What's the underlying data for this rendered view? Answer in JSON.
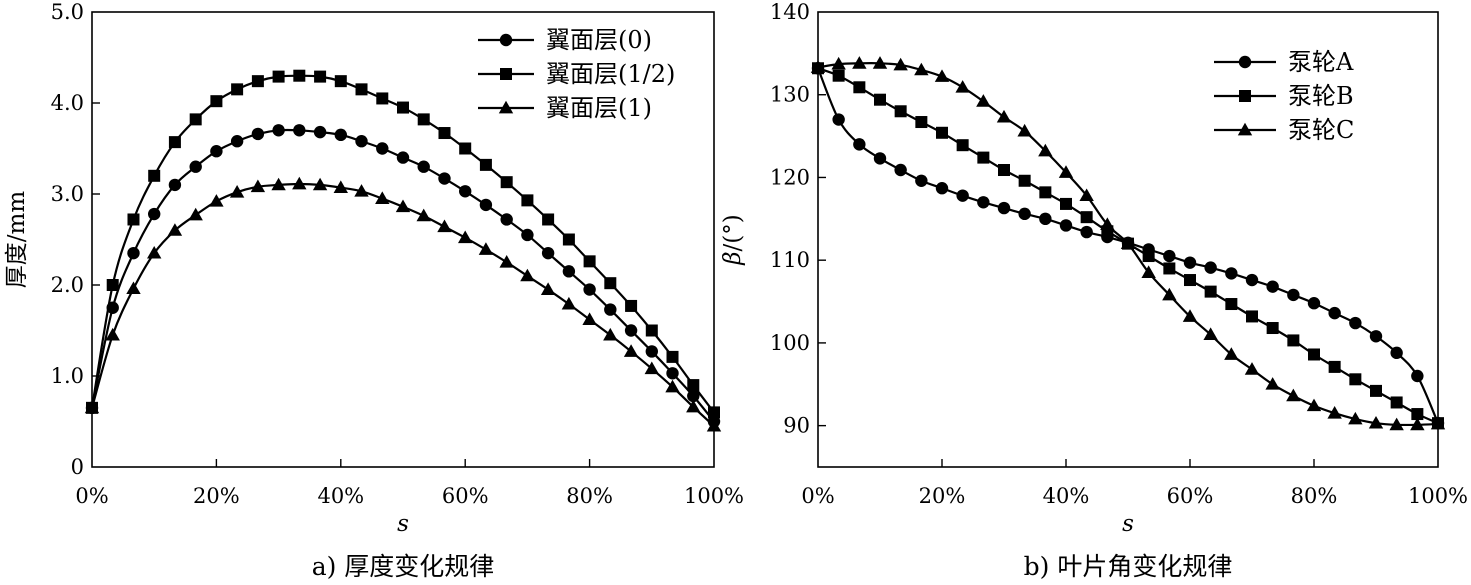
{
  "chart_data": [
    {
      "type": "line",
      "caption": "a) 厚度变化规律",
      "xlabel": "s",
      "ylabel": "厚度/mm",
      "xlim": [
        0,
        100
      ],
      "ylim": [
        0,
        5.0
      ],
      "xticks": [
        0,
        20,
        40,
        60,
        80,
        100
      ],
      "xtick_labels": [
        "0%",
        "20%",
        "40%",
        "60%",
        "80%",
        "100%"
      ],
      "yticks": [
        0,
        1.0,
        2.0,
        3.0,
        4.0,
        5.0
      ],
      "ytick_labels": [
        "0",
        "1.0",
        "2.0",
        "3.0",
        "4.0",
        "5.0"
      ],
      "legend_position": "top-right",
      "grid": false,
      "x": [
        0,
        3.33,
        6.67,
        10,
        13.33,
        16.67,
        20,
        23.33,
        26.67,
        30,
        33.33,
        36.67,
        40,
        43.33,
        46.67,
        50,
        53.33,
        56.67,
        60,
        63.33,
        66.67,
        70,
        73.33,
        76.67,
        80,
        83.33,
        86.67,
        90,
        93.33,
        96.67,
        100
      ],
      "series": [
        {
          "name": "翼面层(0)",
          "marker": "circle",
          "values": [
            0.65,
            1.75,
            2.35,
            2.78,
            3.1,
            3.3,
            3.47,
            3.58,
            3.66,
            3.7,
            3.7,
            3.68,
            3.65,
            3.58,
            3.5,
            3.4,
            3.3,
            3.17,
            3.03,
            2.88,
            2.72,
            2.55,
            2.35,
            2.15,
            1.95,
            1.73,
            1.5,
            1.27,
            1.03,
            0.78,
            0.5
          ]
        },
        {
          "name": "翼面层(1/2)",
          "marker": "square",
          "values": [
            0.65,
            2.0,
            2.72,
            3.2,
            3.57,
            3.82,
            4.02,
            4.15,
            4.24,
            4.29,
            4.3,
            4.29,
            4.24,
            4.15,
            4.05,
            3.95,
            3.82,
            3.67,
            3.5,
            3.32,
            3.13,
            2.93,
            2.72,
            2.5,
            2.26,
            2.02,
            1.77,
            1.5,
            1.21,
            0.9,
            0.6
          ]
        },
        {
          "name": "翼面层(1)",
          "marker": "triangle",
          "values": [
            0.65,
            1.45,
            1.96,
            2.35,
            2.6,
            2.77,
            2.92,
            3.02,
            3.08,
            3.1,
            3.11,
            3.1,
            3.07,
            3.03,
            2.95,
            2.86,
            2.76,
            2.64,
            2.52,
            2.39,
            2.25,
            2.1,
            1.95,
            1.79,
            1.62,
            1.45,
            1.27,
            1.08,
            0.88,
            0.66,
            0.45
          ]
        }
      ]
    },
    {
      "type": "line",
      "caption": "b) 叶片角变化规律",
      "xlabel": "s",
      "ylabel": "β/(°)",
      "xlim": [
        0,
        100
      ],
      "ylim": [
        85,
        140
      ],
      "xticks": [
        0,
        20,
        40,
        60,
        80,
        100
      ],
      "xtick_labels": [
        "0%",
        "20%",
        "40%",
        "60%",
        "80%",
        "100%"
      ],
      "yticks": [
        90,
        100,
        110,
        120,
        130,
        140
      ],
      "ytick_labels": [
        "90",
        "100",
        "110",
        "120",
        "130",
        "140"
      ],
      "legend_position": "top-right",
      "grid": false,
      "x": [
        0,
        3.33,
        6.67,
        10,
        13.33,
        16.67,
        20,
        23.33,
        26.67,
        30,
        33.33,
        36.67,
        40,
        43.33,
        46.67,
        50,
        53.33,
        56.67,
        60,
        63.33,
        66.67,
        70,
        73.33,
        76.67,
        80,
        83.33,
        86.67,
        90,
        93.33,
        96.67,
        100
      ],
      "series": [
        {
          "name": "泵轮A",
          "marker": "circle",
          "values": [
            133.2,
            127.0,
            124.0,
            122.3,
            120.9,
            119.6,
            118.7,
            117.8,
            117.0,
            116.3,
            115.6,
            115.0,
            114.2,
            113.4,
            112.8,
            112.1,
            111.3,
            110.5,
            109.7,
            109.1,
            108.4,
            107.6,
            106.8,
            105.8,
            104.8,
            103.6,
            102.4,
            100.8,
            98.8,
            96.0,
            90.3
          ]
        },
        {
          "name": "泵轮B",
          "marker": "square",
          "values": [
            133.2,
            132.3,
            130.9,
            129.4,
            128.0,
            126.7,
            125.4,
            123.9,
            122.4,
            120.9,
            119.6,
            118.2,
            116.8,
            115.2,
            113.5,
            112.0,
            110.5,
            109.0,
            107.6,
            106.2,
            104.7,
            103.2,
            101.8,
            100.3,
            98.6,
            97.1,
            95.6,
            94.2,
            92.8,
            91.4,
            90.3
          ]
        },
        {
          "name": "泵轮C",
          "marker": "triangle",
          "values": [
            133.3,
            133.7,
            133.8,
            133.8,
            133.6,
            133.0,
            132.2,
            130.9,
            129.2,
            127.3,
            125.6,
            123.2,
            120.6,
            117.8,
            114.3,
            112.0,
            108.5,
            105.8,
            103.2,
            101.0,
            98.6,
            96.8,
            95.0,
            93.6,
            92.4,
            91.5,
            90.8,
            90.3,
            90.1,
            90.1,
            90.2
          ]
        }
      ]
    }
  ]
}
